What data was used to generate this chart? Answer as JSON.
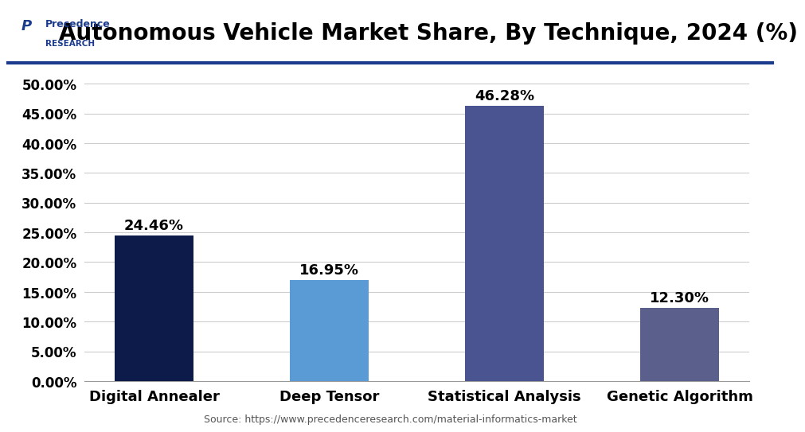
{
  "title": "Autonomous Vehicle Market Share, By Technique, 2024 (%)",
  "categories": [
    "Digital Annealer",
    "Deep Tensor",
    "Statistical Analysis",
    "Genetic Algorithm"
  ],
  "values": [
    24.46,
    16.95,
    46.28,
    12.3
  ],
  "bar_colors": [
    "#0d1b4b",
    "#5b9bd5",
    "#4a5490",
    "#5b5f8c"
  ],
  "ylim": [
    0,
    52
  ],
  "yticks": [
    0,
    5,
    10,
    15,
    20,
    25,
    30,
    35,
    40,
    45,
    50
  ],
  "source_text": "Source: https://www.precedenceresearch.com/material-informatics-market",
  "bg_color": "#ffffff",
  "plot_bg_color": "#ffffff",
  "grid_color": "#cccccc",
  "title_fontsize": 20,
  "label_fontsize": 13,
  "tick_fontsize": 12,
  "annotation_fontsize": 13,
  "logo_line1": "Precedence",
  "logo_line2": "RESEARCH",
  "logo_color": "#1a3a8c",
  "separator_color": "#1a3a8c",
  "separator_linewidth": 3
}
